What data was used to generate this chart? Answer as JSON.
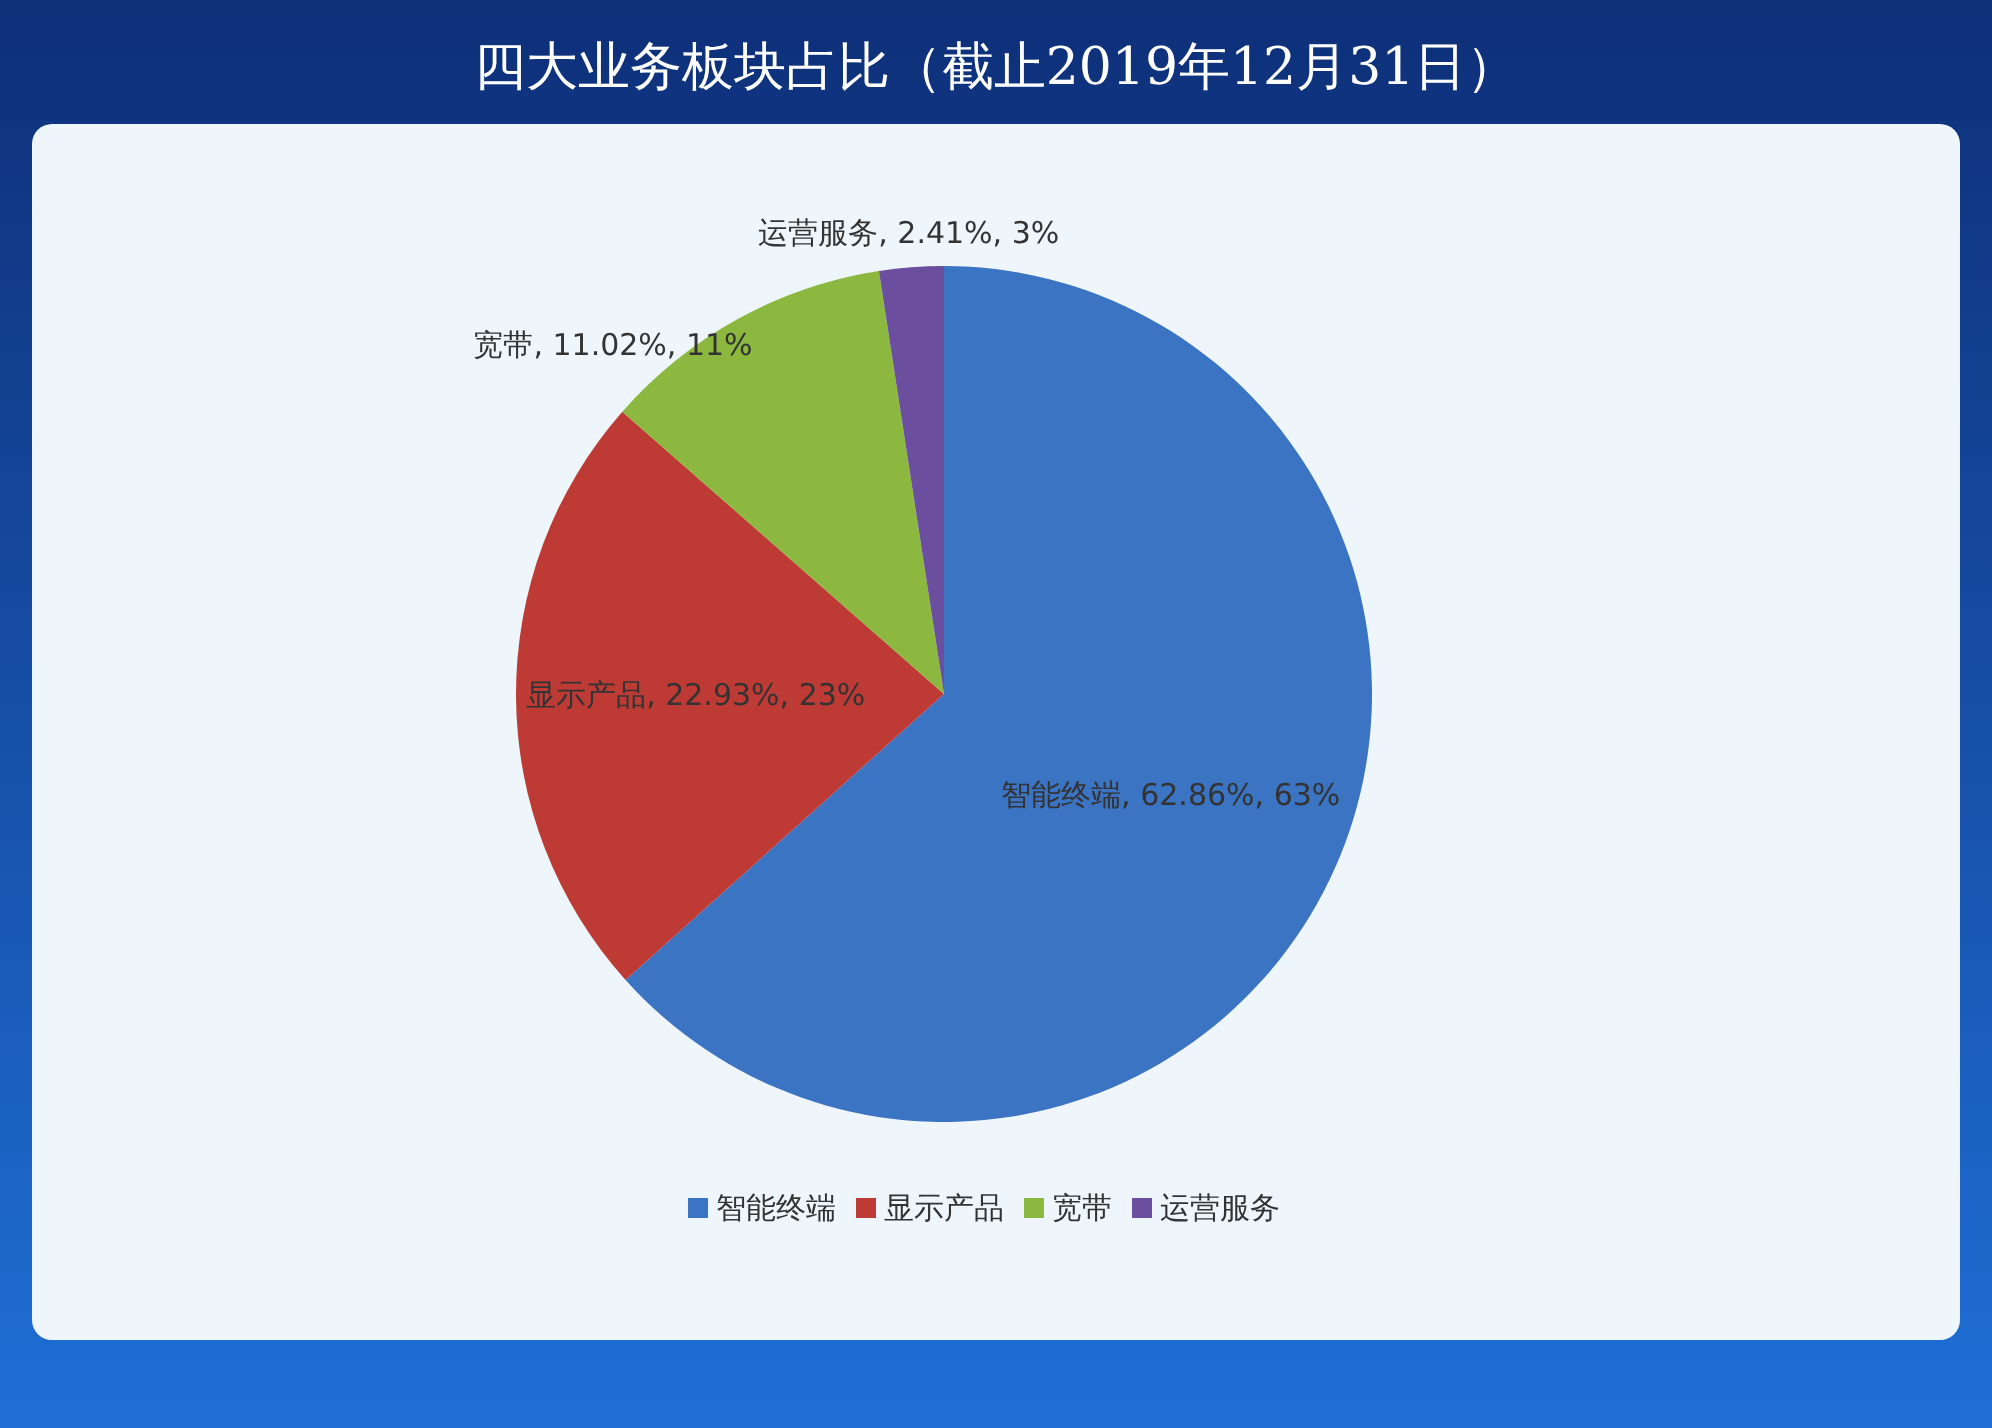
{
  "chart_data": {
    "type": "pie",
    "title": "四大业务板块占比（截止2019年12月31日）",
    "categories": [
      "智能终端",
      "显示产品",
      "宽带",
      "运营服务"
    ],
    "values": [
      62.86,
      22.93,
      11.02,
      2.41
    ],
    "colors": [
      "#3b74c2",
      "#bd3a35",
      "#8cb83f",
      "#6b4e9e"
    ],
    "value_labels": [
      "智能终端, 62.86%, 63%",
      "显示产品, 22.93%, 23%",
      "宽带, 11.02%, 11%",
      "运营服务, 2.41%, 3%"
    ],
    "legend": "bottom"
  }
}
